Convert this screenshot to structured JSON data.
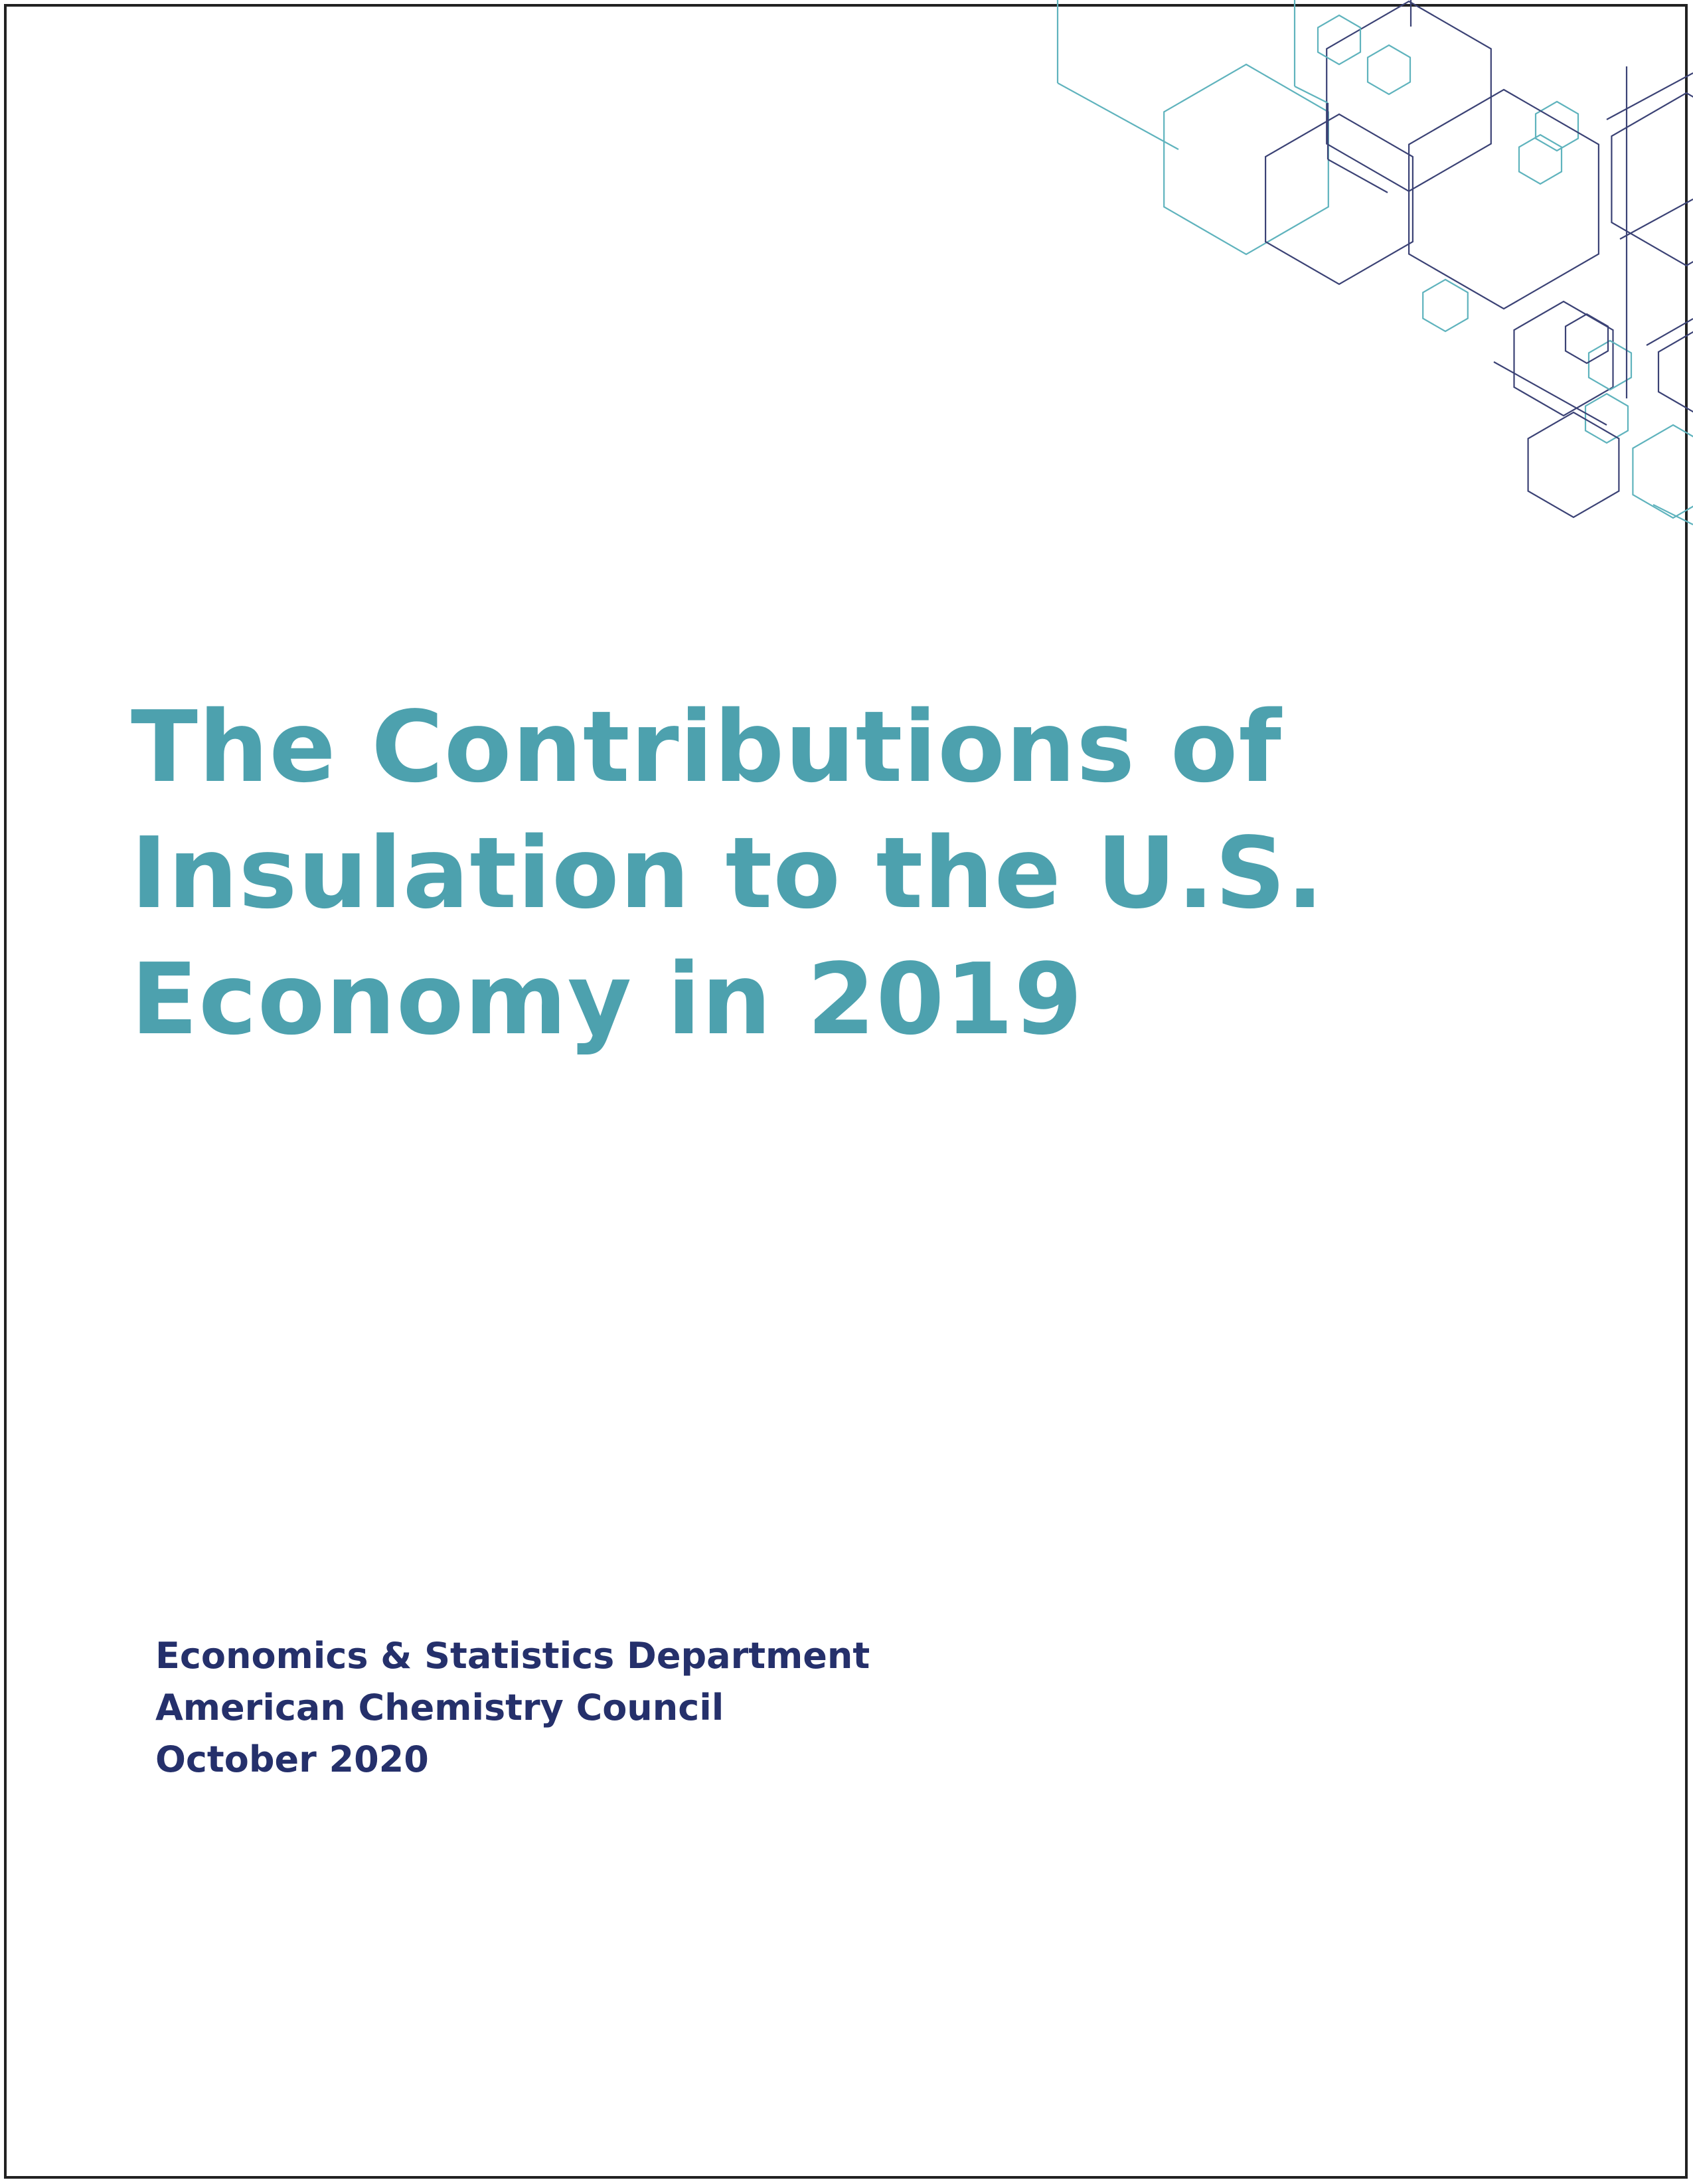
{
  "colors": {
    "title": "#4da1ae",
    "byline": "#25306b",
    "hex_teal": "#5fb3bd",
    "hex_navy": "#3b4275",
    "border": "#222222"
  },
  "cover": {
    "title_lines": [
      "The Contributions of",
      "Insulation to the U.S.",
      "Economy in 2019"
    ],
    "byline": {
      "department": "Economics & Statistics Department",
      "organization": "American Chemistry Council",
      "date": "October 2020"
    }
  },
  "decoration": {
    "icon": "hexagon-molecule-pattern-icon"
  }
}
